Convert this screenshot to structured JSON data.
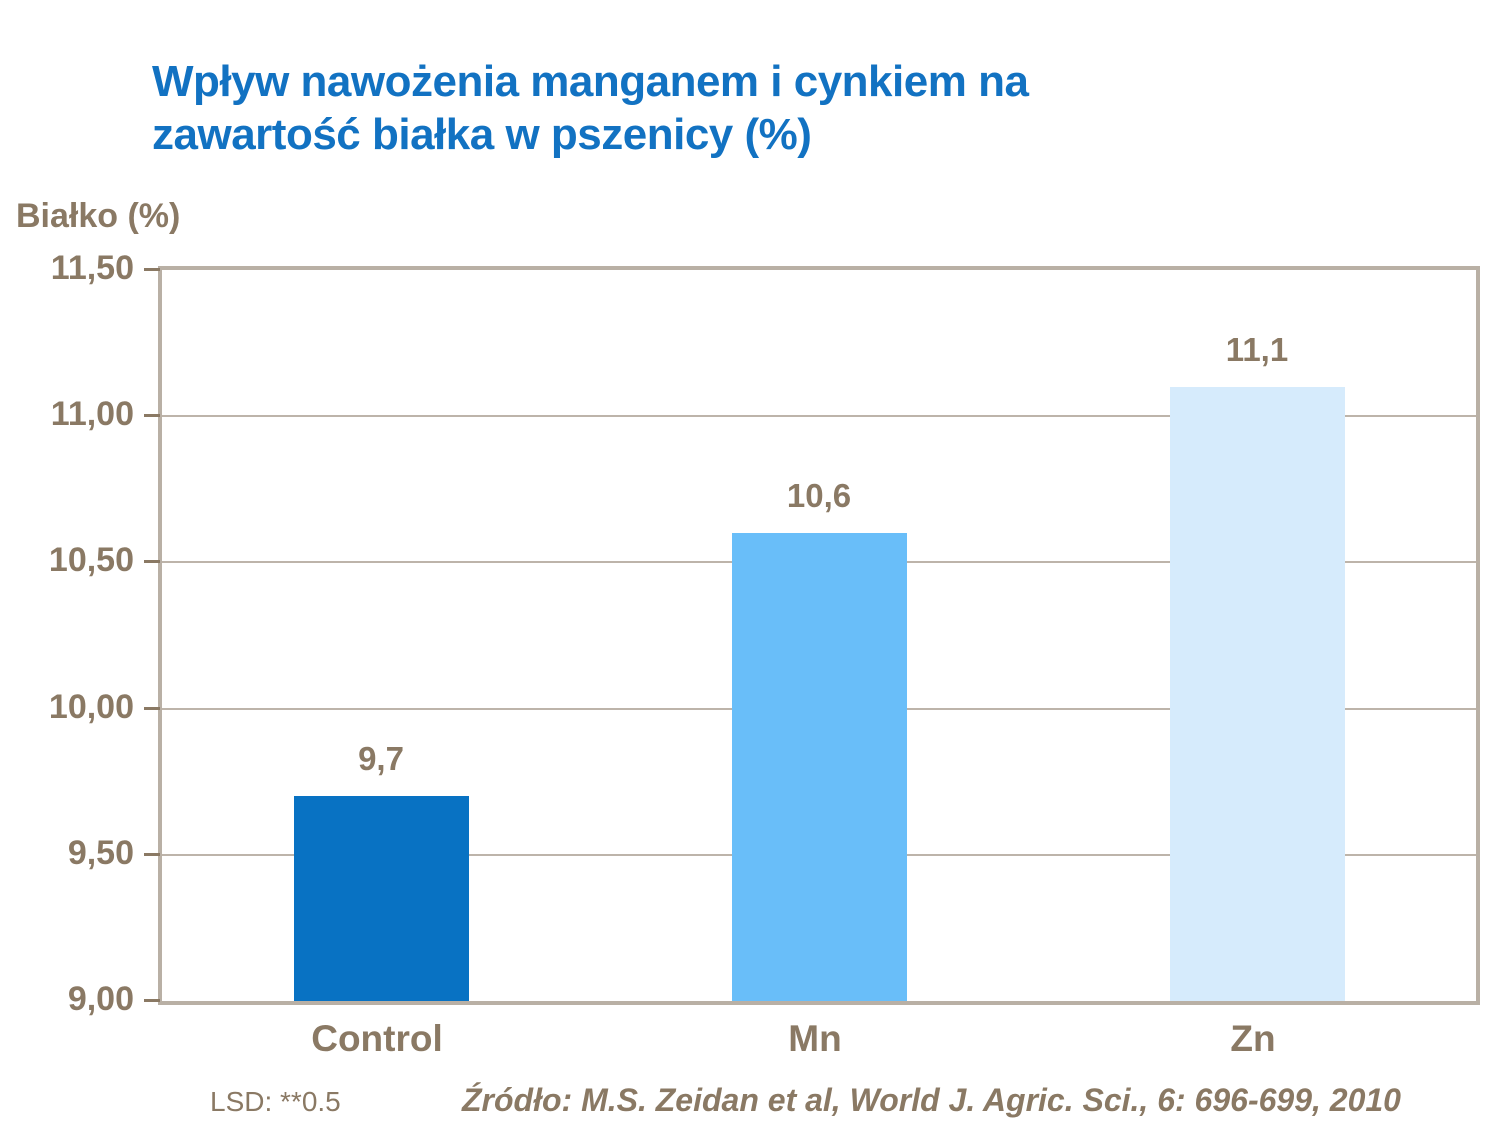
{
  "title": {
    "line1": "Wpływ nawożenia manganem i cynkiem na",
    "line2": "zawartość białka w pszenicy (%)"
  },
  "axis_label": "Białko (%)",
  "footer": {
    "lsd": "LSD: **0.5",
    "source": "Źródło: M.S. Zeidan et al, World J. Agric. Sci., 6: 696-699, 2010"
  },
  "colors": {
    "title_blue": "#1272C2",
    "text_brown": "#8A7964",
    "axis_frame": "#B9B0A5",
    "bar_control": "#0872C3",
    "bar_mn": "#69BEF9",
    "bar_zn": "#D6EBFC"
  },
  "chart_data": {
    "type": "bar",
    "title": "Wpływ nawożenia manganem i cynkiem na zawartość białka w pszenicy (%)",
    "ylabel": "Białko (%)",
    "xlabel": "",
    "categories": [
      "Control",
      "Mn",
      "Zn"
    ],
    "values": [
      9.7,
      10.6,
      11.1
    ],
    "value_labels": [
      "9,7",
      "10,6",
      "11,1"
    ],
    "bar_colors": [
      "#0872C3",
      "#69BEF9",
      "#D6EBFC"
    ],
    "ylim": [
      9.0,
      11.5
    ],
    "yticks": [
      {
        "value": 11.5,
        "label": "11,50"
      },
      {
        "value": 11.0,
        "label": "11,00"
      },
      {
        "value": 10.5,
        "label": "10,50"
      },
      {
        "value": 10.0,
        "label": "10,00"
      },
      {
        "value": 9.5,
        "label": "9,50"
      },
      {
        "value": 9.0,
        "label": "9,00"
      }
    ],
    "grid": true,
    "legend": false,
    "annotations": [
      "LSD: **0.5",
      "Źródło: M.S. Zeidan et al, World J. Agric. Sci., 6: 696-699, 2010"
    ]
  }
}
